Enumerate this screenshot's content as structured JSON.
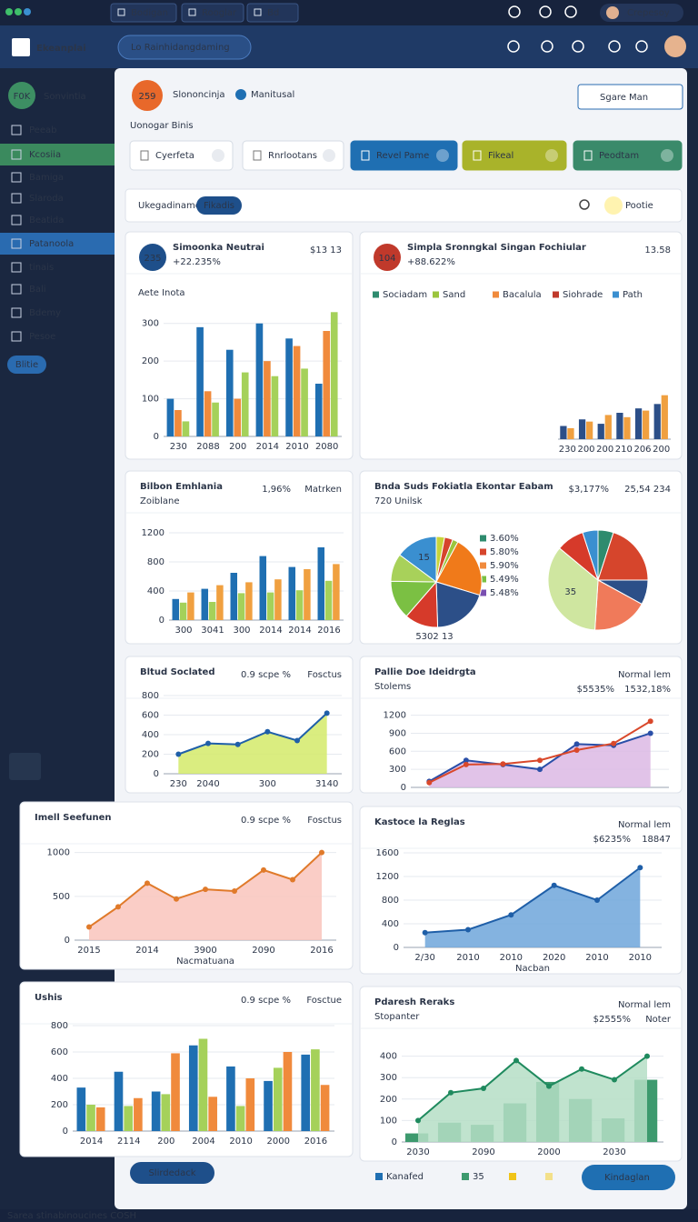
{
  "topbar": {
    "tabs": [
      "Bodigan",
      "Rooglar",
      "Bd"
    ],
    "user": "Crepesoy"
  },
  "header": {
    "logo": "Ekeanplai",
    "search": "Lo Rainhidangdaming"
  },
  "sidebar": {
    "avatar": "F0K",
    "title": "Sonvintia",
    "items": [
      "Peeab",
      "Kcosiia",
      "Bamiga",
      "Slaroda",
      "Beatida",
      "Patanoola",
      "tinais",
      "Bali",
      "Bdemy",
      "Pesoe"
    ],
    "active": [
      1,
      5
    ],
    "active_colors": [
      "#3b8a5e",
      "#2a6bb0"
    ],
    "button": "Blitie"
  },
  "page": {
    "badge": "259",
    "name": "Slononcinja",
    "tag": "Manitusal",
    "action": "Sgare Man",
    "title": "Uonogar Binis"
  },
  "buttons": [
    {
      "label": "Cyerfeta",
      "color": "#ffffff"
    },
    {
      "label": "Rnrlootans",
      "color": "#ffffff"
    },
    {
      "label": "Revel Pame",
      "color": "#1f6fb2"
    },
    {
      "label": "Fikeal",
      "color": "#a9b32a"
    },
    {
      "label": "Peodtam",
      "color": "#3a8a6a"
    }
  ],
  "filter": {
    "label": "Ukegadiname",
    "chip": "Fikadis",
    "option": "Pootie"
  },
  "widgets": [
    {
      "title": "Simoonka Neutrai",
      "badge": "235",
      "badge_color": "#1e4f8a",
      "subtitle": "+22.235%",
      "stats": [
        [
          "$13 13"
        ]
      ],
      "section": "Aete Inota",
      "chart": {
        "type": "bar",
        "categories": [
          "230",
          "2088",
          "200",
          "2014",
          "2010",
          "2080"
        ],
        "ylim": [
          0,
          350
        ],
        "yticks": [
          0,
          100,
          200,
          300
        ],
        "series": [
          {
            "color": "#1f6fb2",
            "values": [
              100,
              290,
              230,
              300,
              260,
              140
            ]
          },
          {
            "color": "#f08a3c",
            "values": [
              70,
              120,
              100,
              200,
              240,
              280
            ]
          },
          {
            "color": "#a5d15a",
            "values": [
              40,
              90,
              170,
              160,
              180,
              330
            ]
          }
        ]
      }
    },
    {
      "title": "Simpla Sronngkal Singan Fochiular",
      "badge": "104",
      "badge_color": "#c0392b",
      "subtitle": "+88.622%",
      "stats": [
        [
          "13.58"
        ]
      ],
      "legend": [
        "Sociadam",
        "Sand",
        "Bacalula",
        "Siohrade",
        "Path"
      ],
      "legend_colors": [
        "#2e8b6e",
        "#9bc53d",
        "#f08a3c",
        "#c0392b",
        "#3a8fd0"
      ],
      "chart": {
        "type": "bar",
        "categories": [
          "230",
          "200",
          "200",
          "210",
          "206",
          "200"
        ],
        "ylim": [
          0,
          120
        ],
        "series": [
          {
            "color": "#2c4f88",
            "values": [
              30,
              45,
              35,
              60,
              70,
              80
            ]
          },
          {
            "color": "#f0a040",
            "values": [
              25,
              40,
              55,
              50,
              65,
              100
            ]
          }
        ]
      }
    },
    {
      "title": "Bilbon Emhlania",
      "subtitle": "Zoiblane",
      "stats": [
        [
          "1,96%",
          "Matrken"
        ]
      ],
      "chart": {
        "type": "bar",
        "categories": [
          "300",
          "3041",
          "300",
          "2014",
          "2014",
          "2016"
        ],
        "ylim": [
          0,
          1300
        ],
        "yticks": [
          0,
          400,
          800,
          1200
        ],
        "series": [
          {
            "color": "#1f6fb2",
            "values": [
              290,
              430,
              650,
              880,
              730,
              1000
            ]
          },
          {
            "color": "#a5d15a",
            "values": [
              240,
              250,
              370,
              380,
              410,
              540
            ]
          },
          {
            "color": "#f0a040",
            "values": [
              380,
              480,
              520,
              560,
              700,
              770
            ]
          }
        ]
      }
    },
    {
      "title": "Bnda Suds Fokiatla Ekontar Eabam",
      "subtitle": "720 Unilsk",
      "stats": [
        [
          "$3,177%",
          "25,54 234"
        ]
      ],
      "legend": [
        "3.60%",
        "5.80%",
        "5.90%",
        "5.49%",
        "5.48%"
      ],
      "legend_colors": [
        "#2e8b6e",
        "#d6452c",
        "#f08a3c",
        "#7bc043",
        "#7a4fb0"
      ],
      "caption": "5302 13",
      "charts": [
        {
          "type": "pie",
          "values": [
            3,
            3,
            2,
            22,
            20,
            12,
            14,
            10,
            15
          ],
          "colors": [
            "#c8d43a",
            "#d6452c",
            "#9bc53d",
            "#f07a1a",
            "#2c4f88",
            "#d63a2a",
            "#7bc043",
            "#a8d15a",
            "#3a8fd0"
          ],
          "value_labels": [
            null,
            null,
            null,
            null,
            null,
            null,
            null,
            null,
            "15"
          ]
        },
        {
          "type": "pie",
          "values": [
            5,
            20,
            8,
            18,
            35,
            9,
            5
          ],
          "colors": [
            "#2e8b6e",
            "#d6452c",
            "#2c4f88",
            "#f07a5a",
            "#cfe6a0",
            "#d63a2a",
            "#3a8fd0"
          ],
          "value_labels": [
            null,
            null,
            null,
            null,
            "35",
            null,
            null
          ]
        }
      ]
    },
    {
      "title": "Bltud Soclated",
      "stats": [
        [
          "0.9 scpe %",
          "Fosctus"
        ]
      ],
      "chart": {
        "type": "area",
        "categories": [
          "230",
          "2040",
          null,
          "300",
          null,
          "3140"
        ],
        "ylim": [
          0,
          800
        ],
        "yticks": [
          0,
          200,
          400,
          600,
          800
        ],
        "series": [
          {
            "color": "#1f5fa8",
            "fill": "#d4ea6a",
            "values": [
              200,
              310,
              300,
              430,
              340,
              620
            ]
          }
        ]
      }
    },
    {
      "title": "Pallie Doe Ideidrgta",
      "subtitle": "Stolems",
      "stats": [
        [
          "Normal lem"
        ],
        [
          "$5535%",
          "1532,18%"
        ]
      ],
      "chart": {
        "type": "area",
        "categories": [
          null,
          null,
          null,
          null,
          null,
          null,
          null
        ],
        "ylim": [
          0,
          1300
        ],
        "yticks": [
          0,
          300,
          600,
          900,
          1200
        ],
        "series": [
          {
            "color": "#2a4fa8",
            "fill": "#dcb8e4",
            "values": [
              100,
              450,
              380,
              300,
              720,
              700,
              900
            ]
          },
          {
            "type": "line",
            "color": "#d9482b",
            "values": [
              80,
              380,
              390,
              450,
              620,
              730,
              1100
            ]
          }
        ]
      }
    },
    {
      "title": "Imell Seefunen",
      "stats": [
        [
          "0.9 scpe %",
          "Fosctus"
        ]
      ],
      "chart": {
        "type": "area",
        "categories": [
          "2015",
          null,
          "2014",
          null,
          "3900",
          null,
          "2090",
          null,
          "2016"
        ],
        "xlabel": "Nacmatuana",
        "ylim": [
          0,
          1100
        ],
        "yticks": [
          0,
          500,
          1000
        ],
        "series": [
          {
            "color": "#e07a2a",
            "fill": "#f9c4bc",
            "values": [
              150,
              380,
              650,
              470,
              580,
              560,
              800,
              690,
              1000
            ]
          }
        ]
      }
    },
    {
      "title": "Kastoce la Reglas",
      "stats": [
        [
          "Normal lem"
        ],
        [
          "$6235%",
          "18847"
        ]
      ],
      "chart": {
        "type": "area",
        "categories": [
          "2/30",
          "2010",
          "2010",
          "2020",
          "2010",
          "2010"
        ],
        "xlabel": "Nacban",
        "ylim": [
          0,
          1600
        ],
        "yticks": [
          0,
          400,
          800,
          1200,
          1600
        ],
        "series": [
          {
            "color": "#1f5fa8",
            "fill": "#6ea6da",
            "values": [
              250,
              300,
              550,
              1050,
              800,
              1350
            ]
          }
        ]
      }
    },
    {
      "title": "Ushis",
      "stats": [
        [
          "0.9 scpe %",
          "Fosctue"
        ]
      ],
      "chart": {
        "type": "bar",
        "categories": [
          "2014",
          "2114",
          "200",
          "2004",
          "2010",
          "2000",
          "2016"
        ],
        "ylim": [
          0,
          800
        ],
        "yticks": [
          0,
          200,
          400,
          600,
          800
        ],
        "series": [
          {
            "color": "#1f6fb2",
            "values": [
              330,
              450,
              300,
              650,
              490,
              380,
              580
            ]
          },
          {
            "color": "#a5d15a",
            "values": [
              200,
              190,
              280,
              700,
              190,
              480,
              620
            ]
          },
          {
            "color": "#f08a3c",
            "values": [
              180,
              250,
              590,
              260,
              400,
              600,
              350
            ]
          }
        ]
      }
    },
    {
      "title": "Pdaresh Reraks",
      "subtitle": "Stopanter",
      "stats": [
        [
          "Normal lem"
        ],
        [
          "$2555%",
          "Noter"
        ]
      ],
      "chart": {
        "type": "combo",
        "categories": [
          "2030",
          null,
          "2090",
          null,
          "2000",
          null,
          "2030",
          null
        ],
        "ylim": [
          0,
          500
        ],
        "yticks": [
          0,
          100,
          200,
          300,
          400
        ],
        "series": [
          {
            "type": "bar",
            "color": "#3d9a6e",
            "values": [
              40,
              90,
              80,
              180,
              280,
              200,
              110,
              290
            ]
          },
          {
            "type": "area",
            "color": "#1f8a5e",
            "fill": "#b5dec6",
            "values": [
              100,
              230,
              250,
              380,
              260,
              340,
              290,
              400
            ]
          }
        ]
      }
    }
  ],
  "footer": {
    "button": "Slirdedack",
    "legend": [
      "Kanafed",
      "35"
    ],
    "action": "Kindaglan",
    "status": "Sarea stinabinoucines COSH"
  }
}
